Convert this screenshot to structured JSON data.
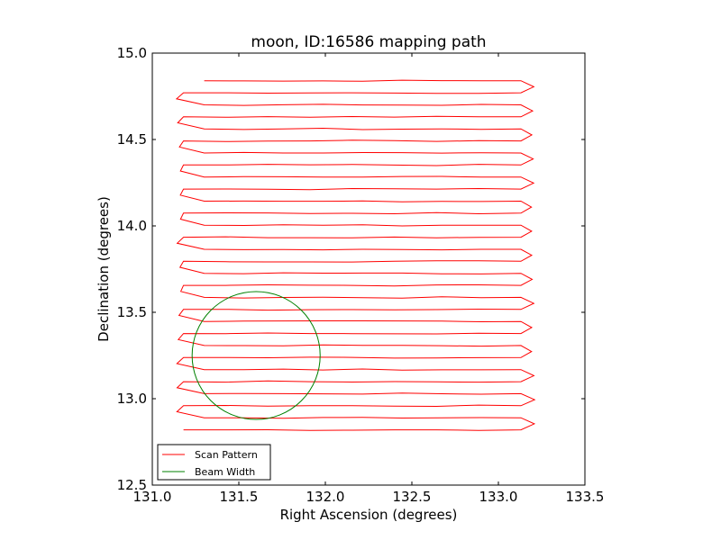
{
  "chart_data": {
    "type": "line",
    "title": "moon, ID:16586 mapping path",
    "xlabel": "Right Ascension (degrees)",
    "ylabel": "Declination (degrees)",
    "xlim": [
      131.0,
      133.5
    ],
    "ylim": [
      12.5,
      15.0
    ],
    "xticks": [
      131.0,
      131.5,
      132.0,
      132.5,
      133.0,
      133.5
    ],
    "yticks": [
      12.5,
      13.0,
      13.5,
      14.0,
      14.5,
      15.0
    ],
    "xtick_labels": [
      "131.0",
      "131.5",
      "132.0",
      "132.5",
      "133.0",
      "133.5"
    ],
    "ytick_labels": [
      "12.5",
      "13.0",
      "13.5",
      "14.0",
      "14.5",
      "15.0"
    ],
    "grid": false,
    "legend_position": "lower-left",
    "series": [
      {
        "name": "Scan Pattern",
        "color": "#ff0000",
        "path": {
          "x_left": 131.15,
          "x_right": 133.13,
          "x_turn": 133.2,
          "y_start": 12.82,
          "y_end": 14.84,
          "passes": 30,
          "jitter": 0.008
        }
      },
      {
        "name": "Beam Width",
        "color": "#008000",
        "circle": {
          "center_x": 131.6,
          "center_y": 13.25,
          "radius_x": 0.37,
          "radius_y": 0.37
        }
      }
    ]
  }
}
